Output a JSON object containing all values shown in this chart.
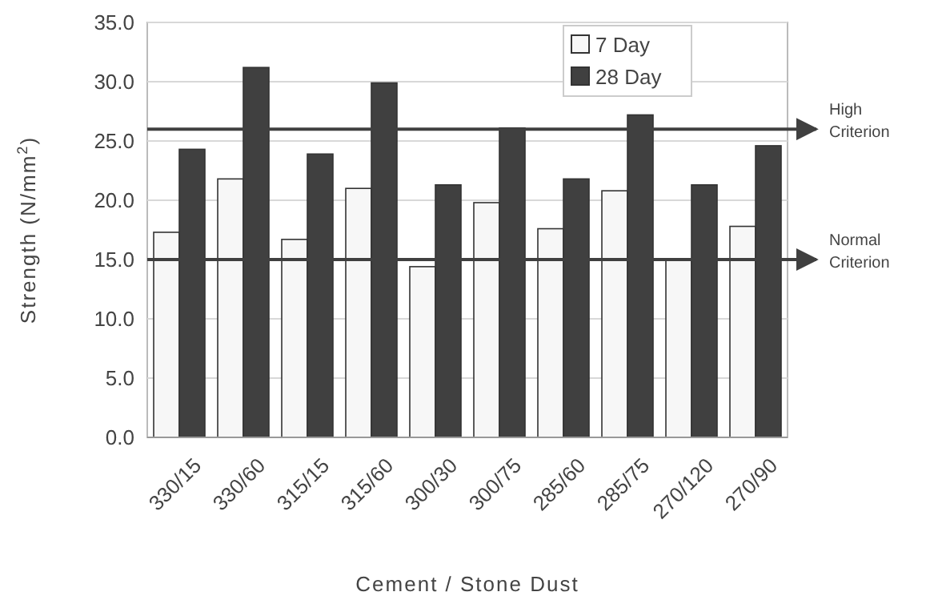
{
  "chart_data": {
    "type": "bar",
    "xlabel": "Cement / Stone Dust",
    "ylabel": "Strength (N/mm$^{2}$)",
    "categories": [
      "330/15",
      "330/60",
      "315/15",
      "315/60",
      "300/30",
      "300/75",
      "285/60",
      "285/75",
      "270/120",
      "270/90"
    ],
    "series": [
      {
        "name": "7 Day",
        "color": "#f7f7f7",
        "values": [
          17.3,
          21.8,
          16.7,
          21.0,
          14.4,
          19.8,
          17.6,
          20.8,
          15.0,
          17.8
        ]
      },
      {
        "name": "28 Day",
        "color": "#404040",
        "values": [
          24.3,
          31.2,
          23.9,
          29.9,
          21.3,
          26.1,
          21.8,
          27.2,
          21.3,
          24.6
        ]
      }
    ],
    "ylim": [
      0,
      35
    ],
    "yticks": [
      {
        "value": 0,
        "label": "0.0"
      },
      {
        "value": 5,
        "label": "5.0"
      },
      {
        "value": 10,
        "label": "10.0"
      },
      {
        "value": 15,
        "label": "15.0"
      },
      {
        "value": 20,
        "label": "20.0"
      },
      {
        "value": 25,
        "label": "25.0"
      },
      {
        "value": 30,
        "label": "30.0"
      },
      {
        "value": 35,
        "label": "35.0"
      }
    ],
    "ref_lines": [
      {
        "axis": "y",
        "value": 26,
        "label": "High Criterion",
        "color": "#404040"
      },
      {
        "axis": "y",
        "value": 15,
        "label": "Normal Criterion",
        "color": "#404040"
      }
    ],
    "grid": "y",
    "legend": "top right"
  }
}
